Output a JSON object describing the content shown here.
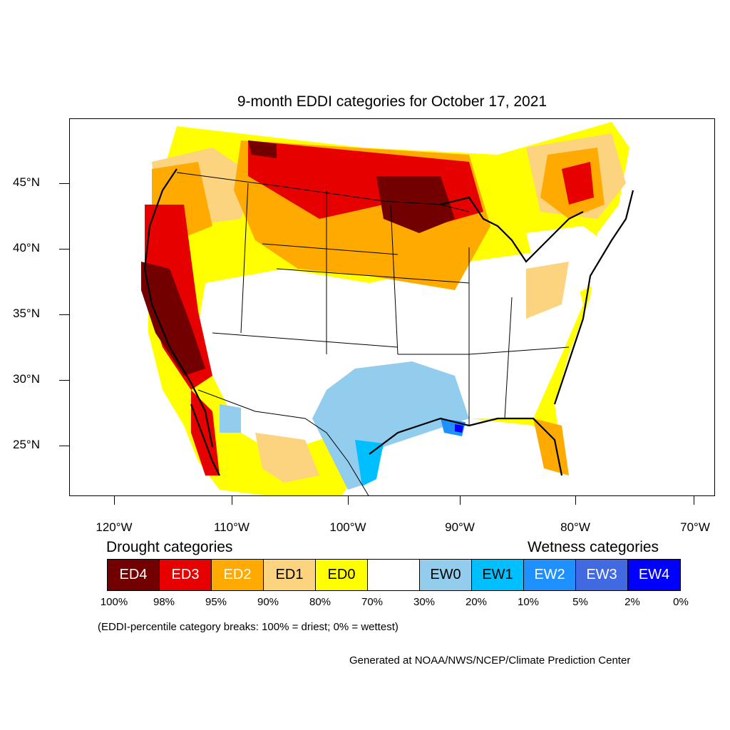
{
  "title": "9-month EDDI categories for October 17, 2021",
  "lat_labels": [
    "45°N",
    "40°N",
    "35°N",
    "30°N",
    "25°N"
  ],
  "lon_labels": [
    "120°W",
    "110°W",
    "100°W",
    "90°W",
    "80°W",
    "70°W"
  ],
  "legend": {
    "drought_heading": "Drought categories",
    "wetness_heading": "Wetness categories",
    "categories": [
      {
        "label": "ED4",
        "color": "#730000",
        "text_color": "#ffffff"
      },
      {
        "label": "ED3",
        "color": "#e60000",
        "text_color": "#ffffff"
      },
      {
        "label": "ED2",
        "color": "#ffaa00",
        "text_color": "#ffffff"
      },
      {
        "label": "ED1",
        "color": "#fcd37f",
        "text_color": "#000000"
      },
      {
        "label": "ED0",
        "color": "#ffff00",
        "text_color": "#000000"
      },
      {
        "label": "",
        "color": "#ffffff",
        "text_color": "#000000"
      },
      {
        "label": "EW0",
        "color": "#92cdee",
        "text_color": "#000000"
      },
      {
        "label": "EW1",
        "color": "#00bfff",
        "text_color": "#000000"
      },
      {
        "label": "EW2",
        "color": "#1e90ff",
        "text_color": "#ffffff"
      },
      {
        "label": "EW3",
        "color": "#4169e1",
        "text_color": "#ffffff"
      },
      {
        "label": "EW4",
        "color": "#0000ff",
        "text_color": "#ffffff"
      }
    ],
    "percentiles": [
      "100%",
      "98%",
      "95%",
      "90%",
      "80%",
      "70%",
      "30%",
      "20%",
      "10%",
      "5%",
      "2%",
      "0%"
    ]
  },
  "note": "(EDDI-percentile category breaks: 100% = driest; 0% = wettest)",
  "credit": "Generated at NOAA/NWS/NCEP/Climate Prediction Center"
}
